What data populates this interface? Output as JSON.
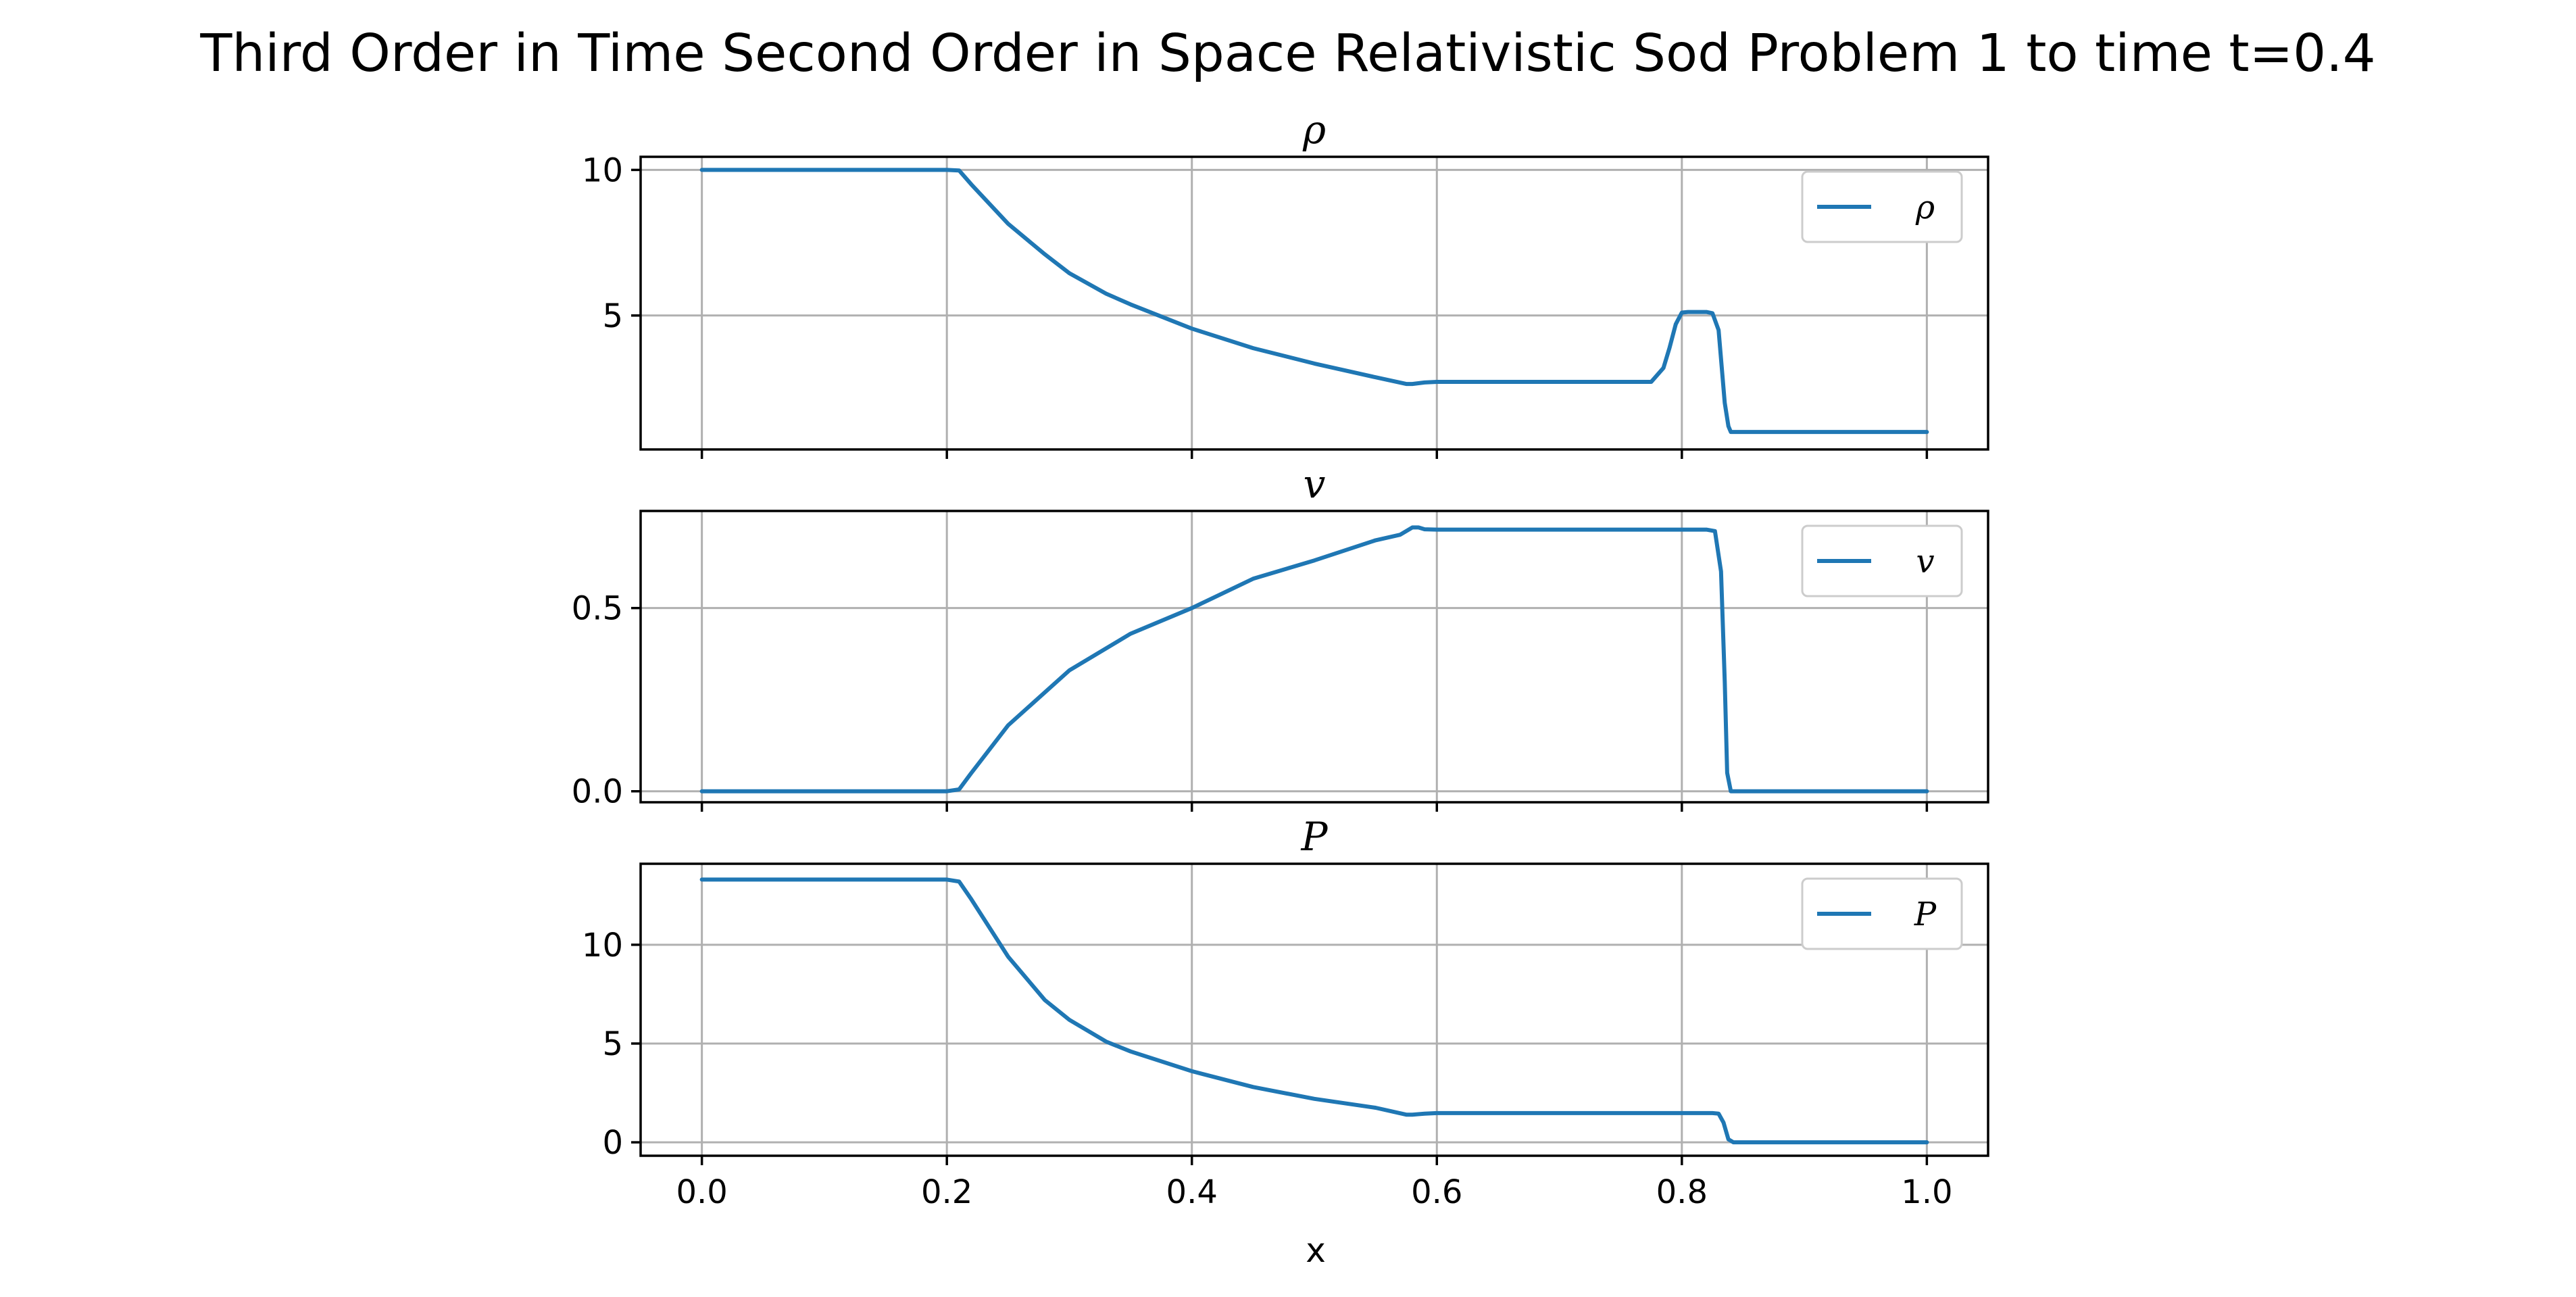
{
  "figure": {
    "title": "Third Order in Time Second Order in Space Relativistic Sod Problem 1 to time t=0.4",
    "xlabel": "x"
  },
  "colors": {
    "series": "#1f77b4",
    "grid": "#b0b0b0"
  },
  "chart_data": [
    {
      "type": "line",
      "title": "ρ",
      "legend": "top-right",
      "grid": true,
      "xlim": [
        -0.05,
        1.05
      ],
      "ylim": [
        0.4,
        10.45
      ],
      "xticks": [
        0.0,
        0.2,
        0.4,
        0.6,
        0.8,
        1.0
      ],
      "xticklabels": [
        "",
        "",
        "",
        "",
        "",
        ""
      ],
      "yticks": [
        5,
        10
      ],
      "yticklabels": [
        "5",
        "10"
      ],
      "series": [
        {
          "name": "ρ",
          "x": [
            0.0,
            0.2,
            0.21,
            0.22,
            0.25,
            0.28,
            0.3,
            0.33,
            0.35,
            0.4,
            0.45,
            0.5,
            0.55,
            0.575,
            0.58,
            0.59,
            0.6,
            0.65,
            0.7,
            0.75,
            0.775,
            0.785,
            0.79,
            0.795,
            0.8,
            0.805,
            0.82,
            0.825,
            0.83,
            0.835,
            0.838,
            0.84,
            0.9,
            1.0
          ],
          "y": [
            10.0,
            10.0,
            9.98,
            9.5,
            8.15,
            7.1,
            6.45,
            5.75,
            5.38,
            4.55,
            3.88,
            3.35,
            2.88,
            2.65,
            2.65,
            2.7,
            2.72,
            2.72,
            2.72,
            2.72,
            2.72,
            3.2,
            3.9,
            4.7,
            5.1,
            5.12,
            5.12,
            5.08,
            4.5,
            2.0,
            1.2,
            1.0,
            1.0,
            1.0
          ]
        }
      ]
    },
    {
      "type": "line",
      "title": "v",
      "legend": "top-right",
      "grid": true,
      "xlim": [
        -0.05,
        1.05
      ],
      "ylim": [
        -0.03,
        0.765
      ],
      "xticks": [
        0.0,
        0.2,
        0.4,
        0.6,
        0.8,
        1.0
      ],
      "xticklabels": [
        "",
        "",
        "",
        "",
        "",
        ""
      ],
      "yticks": [
        0.0,
        0.5
      ],
      "yticklabels": [
        "0.0",
        "0.5"
      ],
      "series": [
        {
          "name": "v",
          "x": [
            0.0,
            0.2,
            0.21,
            0.22,
            0.25,
            0.3,
            0.35,
            0.4,
            0.45,
            0.5,
            0.55,
            0.57,
            0.58,
            0.585,
            0.59,
            0.6,
            0.7,
            0.8,
            0.82,
            0.827,
            0.832,
            0.835,
            0.837,
            0.84,
            0.9,
            1.0
          ],
          "y": [
            0.0,
            0.0,
            0.005,
            0.05,
            0.18,
            0.33,
            0.43,
            0.5,
            0.58,
            0.63,
            0.685,
            0.7,
            0.72,
            0.72,
            0.715,
            0.714,
            0.714,
            0.714,
            0.714,
            0.71,
            0.6,
            0.3,
            0.05,
            0.0,
            0.0,
            0.0
          ]
        }
      ]
    },
    {
      "type": "line",
      "title": "P",
      "legend": "top-right",
      "grid": true,
      "xlim": [
        -0.05,
        1.05
      ],
      "ylim": [
        -0.68,
        14.1
      ],
      "xticks": [
        0.0,
        0.2,
        0.4,
        0.6,
        0.8,
        1.0
      ],
      "xticklabels": [
        "0.0",
        "0.2",
        "0.4",
        "0.6",
        "0.8",
        "1.0"
      ],
      "yticks": [
        0,
        5,
        10
      ],
      "yticklabels": [
        "0",
        "5",
        "10"
      ],
      "series": [
        {
          "name": "P",
          "x": [
            0.0,
            0.2,
            0.21,
            0.22,
            0.25,
            0.28,
            0.3,
            0.33,
            0.35,
            0.4,
            0.45,
            0.5,
            0.55,
            0.575,
            0.58,
            0.59,
            0.6,
            0.7,
            0.8,
            0.825,
            0.83,
            0.834,
            0.838,
            0.842,
            0.9,
            1.0
          ],
          "y": [
            13.3,
            13.3,
            13.2,
            12.3,
            9.4,
            7.2,
            6.2,
            5.1,
            4.6,
            3.6,
            2.8,
            2.2,
            1.75,
            1.4,
            1.4,
            1.45,
            1.48,
            1.48,
            1.48,
            1.48,
            1.45,
            1.0,
            0.15,
            0.0,
            0.0,
            0.0
          ]
        }
      ]
    }
  ]
}
